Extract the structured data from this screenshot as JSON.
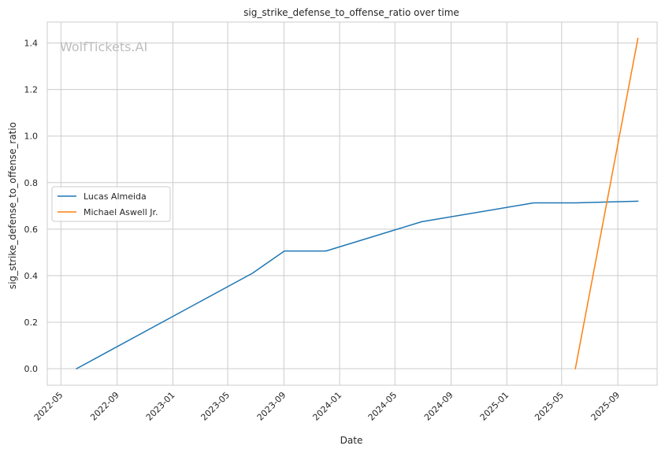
{
  "chart_data": {
    "type": "line",
    "title": "sig_strike_defense_to_offense_ratio over time",
    "xlabel": "Date",
    "ylabel": "sig_strike_defense_to_offense_ratio",
    "watermark": "WolfTickets.AI",
    "x_ticks": [
      "2022-05",
      "2022-09",
      "2023-01",
      "2023-05",
      "2023-09",
      "2024-01",
      "2024-05",
      "2024-09",
      "2025-01",
      "2025-05",
      "2025-09"
    ],
    "y_ticks": [
      "0.0",
      "0.2",
      "0.4",
      "0.6",
      "0.8",
      "1.0",
      "1.2",
      "1.4"
    ],
    "xlim": [
      "2022-04-01",
      "2025-11-26"
    ],
    "ylim": [
      -0.071,
      1.49
    ],
    "grid": true,
    "legend_position": "center-left",
    "series": [
      {
        "name": "Lucas Almeida",
        "color": "#1f77b4",
        "points": [
          [
            "2022-06-04",
            0.0
          ],
          [
            "2023-06-24",
            0.41
          ],
          [
            "2023-09-02",
            0.506
          ],
          [
            "2023-12-02",
            0.506
          ],
          [
            "2024-06-29",
            0.632
          ],
          [
            "2025-03-01",
            0.713
          ],
          [
            "2025-06-01",
            0.713
          ],
          [
            "2025-10-15",
            0.72
          ]
        ]
      },
      {
        "name": "Michael Aswell Jr.",
        "color": "#ff7f0e",
        "points": [
          [
            "2025-05-31",
            0.0
          ],
          [
            "2025-10-15",
            1.42
          ]
        ]
      }
    ]
  }
}
